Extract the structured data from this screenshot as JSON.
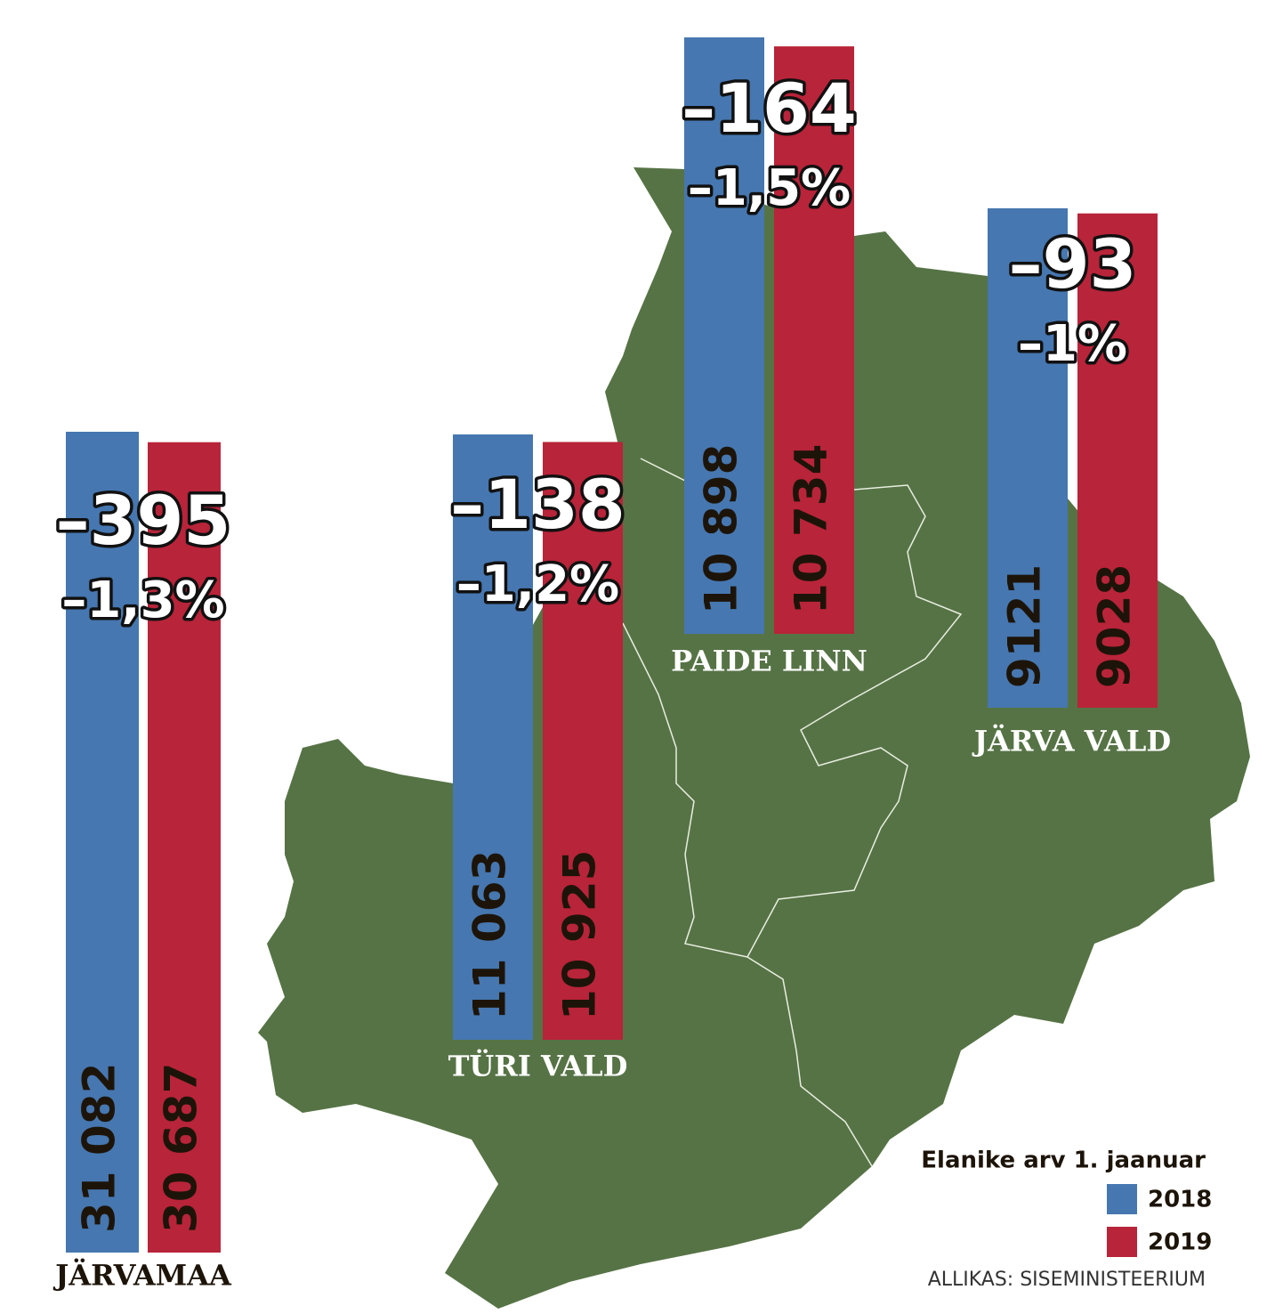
{
  "chart_data": {
    "type": "bar",
    "title": "Elanike arv 1. jaanuar",
    "source": "ALLIKAS: SISEMINISTEERIUM",
    "categories": [
      "JÄRVAMAA",
      "TÜRI VALD",
      "PAIDE LINN",
      "JÄRVA VALD"
    ],
    "series": [
      {
        "name": "2018",
        "color": "#4677b0",
        "values": [
          31082,
          11063,
          10898,
          9121
        ],
        "value_labels": [
          "31 082",
          "11 063",
          "10 898",
          "9121"
        ]
      },
      {
        "name": "2019",
        "color": "#b82439",
        "values": [
          30687,
          10925,
          10734,
          9028
        ],
        "value_labels": [
          "30 687",
          "10 925",
          "10 734",
          "9028"
        ]
      }
    ],
    "changes": [
      "–395",
      "–138",
      "–164",
      "–93"
    ],
    "change_percents": [
      "–1,3%",
      "–1,2%",
      "–1,5%",
      "–1%"
    ]
  }
}
